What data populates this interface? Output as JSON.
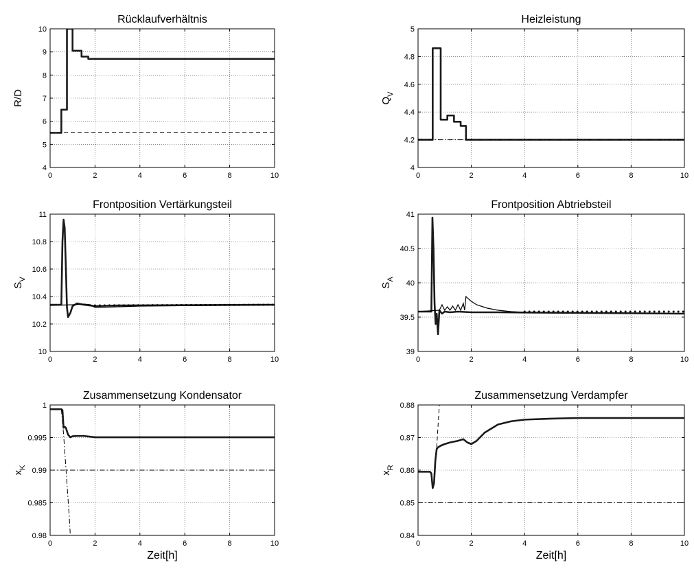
{
  "chart_data": [
    {
      "id": "ruecklauf",
      "type": "line",
      "title": "Rücklaufverhältnis",
      "xlabel": "",
      "ylabel": "R/D",
      "ylabel_sub": "",
      "xlim": [
        0,
        10
      ],
      "ylim": [
        4,
        10
      ],
      "xticks": [
        "0",
        "2",
        "4",
        "6",
        "8",
        "10"
      ],
      "yticks": [
        "4",
        "5",
        "6",
        "7",
        "8",
        "9",
        "10"
      ],
      "yticks_values": [
        4,
        5,
        6,
        7,
        8,
        9,
        10
      ],
      "grid": true,
      "series": [
        {
          "style": "main",
          "x": [
            0,
            0.5,
            0.5,
            0.75,
            0.75,
            1.0,
            1.0,
            1.4,
            1.4,
            1.7,
            1.7,
            10
          ],
          "y": [
            5.5,
            5.5,
            6.5,
            6.5,
            10,
            10,
            9.05,
            9.05,
            8.8,
            8.8,
            8.7,
            8.7
          ]
        },
        {
          "style": "ref",
          "x": [
            0,
            10
          ],
          "y": [
            5.5,
            5.5
          ]
        }
      ]
    },
    {
      "id": "heiz",
      "type": "line",
      "title": "Heizleistung",
      "xlabel": "",
      "ylabel": "Q",
      "ylabel_sub": "V",
      "xlim": [
        0,
        10
      ],
      "ylim": [
        4,
        5
      ],
      "xticks": [
        "0",
        "2",
        "4",
        "6",
        "8",
        "10"
      ],
      "yticks": [
        "4",
        "4.2",
        "4.4",
        "4.6",
        "4.8",
        "5"
      ],
      "yticks_values": [
        4,
        4.2,
        4.4,
        4.6,
        4.8,
        5
      ],
      "grid": true,
      "series": [
        {
          "style": "main",
          "x": [
            0,
            0.55,
            0.55,
            0.85,
            0.85,
            1.1,
            1.1,
            1.35,
            1.35,
            1.6,
            1.6,
            1.8,
            1.8,
            10
          ],
          "y": [
            4.2,
            4.2,
            4.86,
            4.86,
            4.345,
            4.345,
            4.375,
            4.375,
            4.33,
            4.33,
            4.3,
            4.3,
            4.2,
            4.2
          ]
        },
        {
          "style": "refdd",
          "x": [
            0,
            10
          ],
          "y": [
            4.2,
            4.2
          ]
        }
      ]
    },
    {
      "id": "front-v",
      "type": "line",
      "title": "Frontposition Vertärkungsteil",
      "xlabel": "",
      "ylabel": "S",
      "ylabel_sub": "V",
      "xlim": [
        0,
        10
      ],
      "ylim": [
        10,
        11
      ],
      "xticks": [
        "0",
        "2",
        "4",
        "6",
        "8",
        "10"
      ],
      "yticks": [
        "10",
        "10.2",
        "10.4",
        "10.6",
        "10.8",
        "11"
      ],
      "yticks_values": [
        10,
        10.2,
        10.4,
        10.6,
        10.8,
        11
      ],
      "grid": true,
      "series": [
        {
          "style": "main",
          "x": [
            0,
            0.5,
            0.55,
            0.6,
            0.65,
            0.7,
            0.75,
            0.8,
            0.9,
            1.0,
            1.2,
            1.5,
            2.0,
            3.0,
            10
          ],
          "y": [
            10.34,
            10.34,
            10.8,
            10.96,
            10.9,
            10.62,
            10.32,
            10.25,
            10.28,
            10.33,
            10.35,
            10.34,
            10.33,
            10.335,
            10.34
          ]
        },
        {
          "style": "thin",
          "x": [
            0,
            1.0,
            1.5,
            1.8,
            2.0,
            4.0,
            10
          ],
          "y": [
            10.335,
            10.34,
            10.345,
            10.34,
            10.32,
            10.33,
            10.34
          ]
        },
        {
          "style": "dots",
          "x": [
            2.0,
            10
          ],
          "y": [
            10.335,
            10.34
          ]
        }
      ]
    },
    {
      "id": "front-a",
      "type": "line",
      "title": "Frontposition Abtriebsteil",
      "xlabel": "",
      "ylabel": "S",
      "ylabel_sub": "A",
      "xlim": [
        0,
        10
      ],
      "ylim": [
        39,
        41
      ],
      "xticks": [
        "0",
        "2",
        "4",
        "6",
        "8",
        "10"
      ],
      "yticks": [
        "39",
        "39.5",
        "40",
        "40.5",
        "41"
      ],
      "yticks_values": [
        39,
        39.5,
        40,
        40.5,
        41
      ],
      "grid": true,
      "series": [
        {
          "style": "main",
          "x": [
            0,
            0.5,
            0.54,
            0.58,
            0.62,
            0.66,
            0.7,
            0.75,
            0.8,
            0.9,
            1.0,
            1.2,
            1.5,
            2.0,
            3.0,
            10
          ],
          "y": [
            39.58,
            39.58,
            40.95,
            40.5,
            39.7,
            39.4,
            39.55,
            39.25,
            39.6,
            39.55,
            39.58,
            39.57,
            39.58,
            39.57,
            39.57,
            39.55
          ]
        },
        {
          "style": "thin",
          "x": [
            0,
            0.8,
            0.9,
            1.0,
            1.1,
            1.2,
            1.3,
            1.4,
            1.5,
            1.6,
            1.7,
            1.75,
            1.8,
            1.85,
            2.0,
            2.2,
            2.6,
            3.0,
            3.5,
            4.0
          ],
          "y": [
            39.58,
            39.6,
            39.68,
            39.6,
            39.65,
            39.6,
            39.66,
            39.6,
            39.68,
            39.6,
            39.7,
            39.6,
            39.8,
            39.78,
            39.73,
            39.68,
            39.63,
            39.6,
            39.58,
            39.57
          ]
        },
        {
          "style": "dots",
          "x": [
            4.0,
            10
          ],
          "y": [
            39.58,
            39.58
          ]
        }
      ]
    },
    {
      "id": "x-kond",
      "type": "line",
      "title": "Zusammensetzung Kondensator",
      "xlabel": "Zeit[h]",
      "ylabel": "x",
      "ylabel_sub": "K",
      "xlim": [
        0,
        10
      ],
      "ylim": [
        0.98,
        1
      ],
      "xticks": [
        "0",
        "2",
        "4",
        "6",
        "8",
        "10"
      ],
      "yticks": [
        "0.98",
        "0.985",
        "0.99",
        "0.995",
        "1"
      ],
      "yticks_values": [
        0.98,
        0.985,
        0.99,
        0.995,
        1
      ],
      "grid": true,
      "series": [
        {
          "style": "main",
          "x": [
            0,
            0.5,
            0.5,
            0.55,
            0.6,
            0.65,
            0.7,
            0.8,
            0.9,
            1.0,
            1.2,
            1.5,
            2.0,
            3.0,
            10
          ],
          "y": [
            0.99935,
            0.99935,
            0.99935,
            0.9992,
            0.9965,
            0.99665,
            0.9965,
            0.99545,
            0.99505,
            0.9952,
            0.99525,
            0.99525,
            0.99505,
            0.99505,
            0.99505
          ]
        },
        {
          "style": "refdd",
          "x": [
            0,
            10
          ],
          "y": [
            0.99,
            0.99
          ]
        },
        {
          "style": "refdd",
          "x": [
            0.5,
            0.55,
            0.6,
            0.65,
            0.7,
            0.75,
            0.8,
            0.85,
            0.9
          ],
          "y": [
            0.9993,
            0.9975,
            0.9955,
            0.993,
            0.9905,
            0.988,
            0.9855,
            0.983,
            0.98
          ]
        }
      ]
    },
    {
      "id": "x-verd",
      "type": "line",
      "title": "Zusammensetzung Verdampfer",
      "xlabel": "Zeit[h]",
      "ylabel": "x",
      "ylabel_sub": "R",
      "xlim": [
        0,
        10
      ],
      "ylim": [
        0.84,
        0.88
      ],
      "xticks": [
        "0",
        "2",
        "4",
        "6",
        "8",
        "10"
      ],
      "yticks": [
        "0.84",
        "0.85",
        "0.86",
        "0.87",
        "0.88"
      ],
      "yticks_values": [
        0.84,
        0.85,
        0.86,
        0.87,
        0.88
      ],
      "grid": true,
      "series": [
        {
          "style": "main",
          "x": [
            0,
            0.45,
            0.5,
            0.55,
            0.6,
            0.65,
            0.7,
            0.75,
            0.85,
            1.0,
            1.2,
            1.5,
            1.7,
            1.85,
            2.0,
            2.2,
            2.5,
            3.0,
            3.5,
            4.0,
            5.0,
            6.0,
            8.0,
            10
          ],
          "y": [
            0.8595,
            0.8595,
            0.859,
            0.8545,
            0.856,
            0.863,
            0.8665,
            0.867,
            0.8675,
            0.868,
            0.8685,
            0.869,
            0.8695,
            0.8685,
            0.868,
            0.869,
            0.8715,
            0.874,
            0.875,
            0.8755,
            0.8758,
            0.876,
            0.876,
            0.876
          ]
        },
        {
          "style": "refdd",
          "x": [
            0,
            10
          ],
          "y": [
            0.85,
            0.85
          ]
        },
        {
          "style": "ref",
          "x": [
            0.7,
            0.8
          ],
          "y": [
            0.867,
            0.88
          ]
        }
      ]
    }
  ]
}
